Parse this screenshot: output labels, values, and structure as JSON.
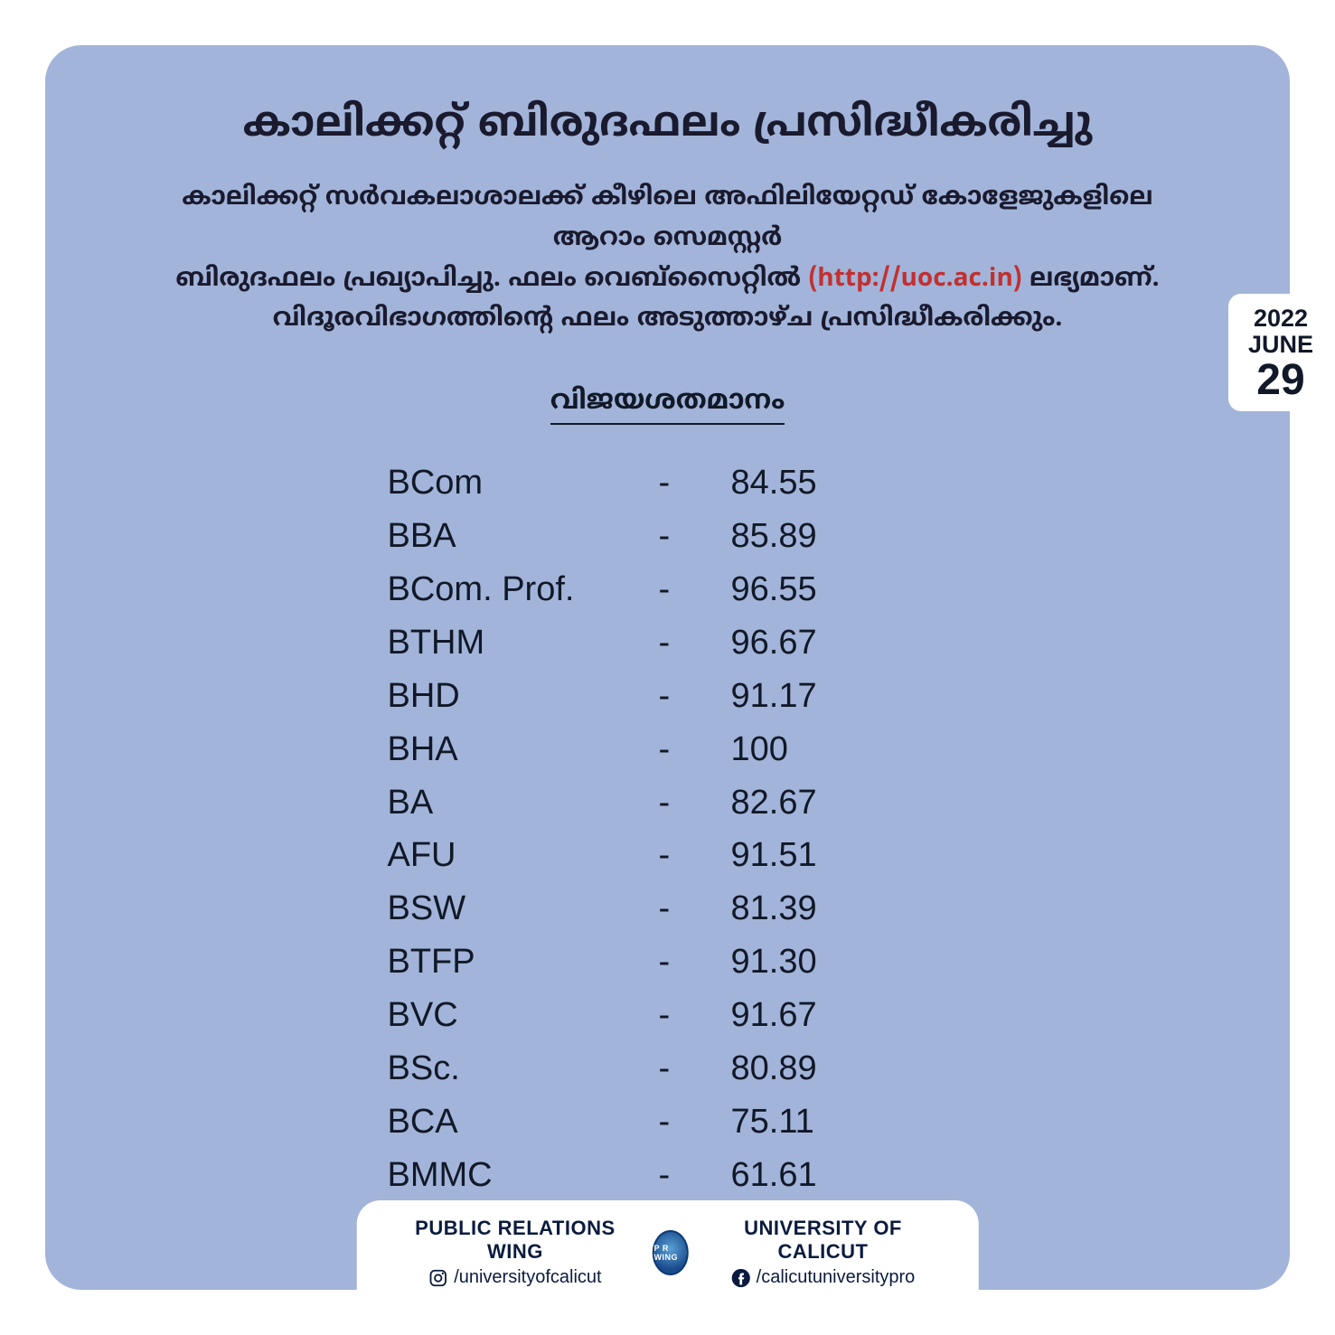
{
  "colors": {
    "card_bg": "#a2b4d9",
    "page_bg": "#ffffff",
    "text_primary": "#111827",
    "url_color": "#c23030",
    "footer_text": "#0b1b3f"
  },
  "title": "കാലിക്കറ്റ് ബിരുദഫലം പ്രസിദ്ധീകരിച്ചു",
  "subtitle_parts": {
    "line1": "കാലിക്കറ്റ് സർവകലാശാലക്ക് കീഴിലെ അഫിലിയേറ്റഡ് കോളേജുകളിലെ ആറാം സെമസ്റ്റർ",
    "line2a": "ബിരുദഫലം പ്രഖ്യാപിച്ചു. ഫലം വെബ്സൈറ്റിൽ ",
    "url": "(http://uoc.ac.in)",
    "line2b": " ലഭ്യമാണ്.",
    "line3": "വിദൂരവിഭാഗത്തിന്റെ ഫലം അടുത്താഴ്ച പ്രസിദ്ധീകരിക്കും."
  },
  "table": {
    "header": "വിജയശതമാനം",
    "dash": "-",
    "rows": [
      {
        "course": "BCom",
        "value": "84.55"
      },
      {
        "course": "BBA",
        "value": "85.89"
      },
      {
        "course": "BCom. Prof.",
        "value": "96.55"
      },
      {
        "course": "BTHM",
        "value": "96.67"
      },
      {
        "course": "BHD",
        "value": "91.17"
      },
      {
        "course": "BHA",
        "value": "100"
      },
      {
        "course": "BA",
        "value": "82.67"
      },
      {
        "course": "AFU",
        "value": "91.51"
      },
      {
        "course": "BSW",
        "value": "81.39"
      },
      {
        "course": "BTFP",
        "value": "91.30"
      },
      {
        "course": "BVC",
        "value": "91.67"
      },
      {
        "course": "BSc.",
        "value": "80.89"
      },
      {
        "course": "BCA",
        "value": "75.11"
      },
      {
        "course": "BMMC",
        "value": "61.61"
      }
    ]
  },
  "date_tab": {
    "year": "2022",
    "month": "JUNE",
    "day": "29"
  },
  "footer": {
    "left_title": "PUBLIC RELATIONS WING",
    "left_handle": "/universityofcalicut",
    "seal_text": "P R WING",
    "right_title": "UNIVERSITY OF CALICUT",
    "right_handle": "/calicutuniversitypro"
  }
}
